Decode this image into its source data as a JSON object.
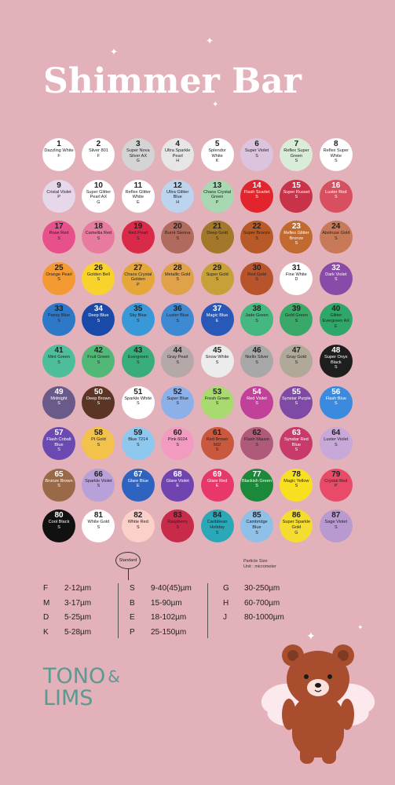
{
  "title": "Shimmer Bar",
  "colors": {
    "background": "#e3b1b9",
    "logo": "#5a9a91"
  },
  "swatches": [
    {
      "num": "1",
      "name": "Dazzling White",
      "code": "F",
      "color": "#ffffff",
      "text": "#222"
    },
    {
      "num": "2",
      "name": "Silver 801",
      "code": "F",
      "color": "#ffffff",
      "text": "#222"
    },
    {
      "num": "3",
      "name": "Super Nova Silver AX",
      "code": "G",
      "color": "#d4d4d4",
      "text": "#222"
    },
    {
      "num": "4",
      "name": "Ultra Sparkle Pearl",
      "code": "H",
      "color": "#e6e6e6",
      "text": "#222"
    },
    {
      "num": "5",
      "name": "Splendor White",
      "code": "K",
      "color": "#ffffff",
      "text": "#222"
    },
    {
      "num": "6",
      "name": "Super Violet",
      "code": "S",
      "color": "#dcc4de",
      "text": "#222"
    },
    {
      "num": "7",
      "name": "Reflex Super Green",
      "code": "S",
      "color": "#d8ecd8",
      "text": "#222"
    },
    {
      "num": "8",
      "name": "Reflex Super White",
      "code": "S",
      "color": "#ffffff",
      "text": "#222"
    },
    {
      "num": "9",
      "name": "Cristal Violet",
      "code": "P",
      "color": "#e7d7ea",
      "text": "#222"
    },
    {
      "num": "10",
      "name": "Super Glitter Pearl AX",
      "code": "G",
      "color": "#ffffff",
      "text": "#222"
    },
    {
      "num": "11",
      "name": "Reflex Glitter White",
      "code": "E",
      "color": "#ffffff",
      "text": "#222"
    },
    {
      "num": "12",
      "name": "Ultra Glitter Blue",
      "code": "H",
      "color": "#bcd4ee",
      "text": "#222"
    },
    {
      "num": "13",
      "name": "Chaos Crystal Green",
      "code": "P",
      "color": "#a8d8b2",
      "text": "#222"
    },
    {
      "num": "14",
      "name": "Flash Scarlet",
      "code": "S",
      "color": "#e2242c",
      "text": "#ffffff"
    },
    {
      "num": "15",
      "name": "Super Russet",
      "code": "S",
      "color": "#c9334a",
      "text": "#ffffff"
    },
    {
      "num": "16",
      "name": "Luster Red",
      "code": "S",
      "color": "#d8505f",
      "text": "#ffffff"
    },
    {
      "num": "17",
      "name": "Rose Red",
      "code": "S",
      "color": "#e8508c",
      "text": "#222"
    },
    {
      "num": "18",
      "name": "Camellia Red",
      "code": "S",
      "color": "#e87aa0",
      "text": "#222"
    },
    {
      "num": "19",
      "name": "Red Pearl",
      "code": "S",
      "color": "#d92a4a",
      "text": "#222"
    },
    {
      "num": "20",
      "name": "Burnt Sienna",
      "code": "S",
      "color": "#b06a5e",
      "text": "#222"
    },
    {
      "num": "21",
      "name": "Deep Gold",
      "code": "S",
      "color": "#a3782a",
      "text": "#222"
    },
    {
      "num": "22",
      "name": "Super Bronze",
      "code": "S",
      "color": "#b85a28",
      "text": "#222"
    },
    {
      "num": "23",
      "name": "Reflex Glitter Bronze",
      "code": "S",
      "color": "#c06a30",
      "text": "#ffffff"
    },
    {
      "num": "24",
      "name": "Abstruse Gold",
      "code": "S",
      "color": "#c87a58",
      "text": "#222"
    },
    {
      "num": "25",
      "name": "Orange Pearl",
      "code": "S",
      "color": "#f39a32",
      "text": "#222"
    },
    {
      "num": "26",
      "name": "Golden Bell",
      "code": "S",
      "color": "#f8d32c",
      "text": "#222"
    },
    {
      "num": "27",
      "name": "Chaos Crystal Golden",
      "code": "P",
      "color": "#e5a838",
      "text": "#222"
    },
    {
      "num": "28",
      "name": "Metallic Gold",
      "code": "S",
      "color": "#dfa24a",
      "text": "#222"
    },
    {
      "num": "29",
      "name": "Super Gold",
      "code": "S",
      "color": "#c8a038",
      "text": "#222"
    },
    {
      "num": "30",
      "name": "Red Gold",
      "code": "S",
      "color": "#b8542c",
      "text": "#222"
    },
    {
      "num": "31",
      "name": "Fine White",
      "code": "D",
      "color": "#ffffff",
      "text": "#222"
    },
    {
      "num": "32",
      "name": "Dark Violet",
      "code": "S",
      "color": "#8a4aa8",
      "text": "#ffffff"
    },
    {
      "num": "33",
      "name": "Pansy Blue",
      "code": "S",
      "color": "#2e78c8",
      "text": "#222"
    },
    {
      "num": "34",
      "name": "Deep Blue",
      "code": "S",
      "color": "#1a4aa8",
      "text": "#ffffff"
    },
    {
      "num": "35",
      "name": "Sky Blue",
      "code": "S",
      "color": "#3898d8",
      "text": "#222"
    },
    {
      "num": "36",
      "name": "Luster Blue",
      "code": "S",
      "color": "#3e8ad2",
      "text": "#222"
    },
    {
      "num": "37",
      "name": "Magic Blue",
      "code": "E",
      "color": "#2858b8",
      "text": "#ffffff"
    },
    {
      "num": "38",
      "name": "Jade Green",
      "code": "S",
      "color": "#44b880",
      "text": "#222"
    },
    {
      "num": "39",
      "name": "Gold Green",
      "code": "S",
      "color": "#3aa868",
      "text": "#222"
    },
    {
      "num": "40",
      "name": "Glitter Evergreen AX",
      "code": "E",
      "color": "#2ea86a",
      "text": "#222"
    },
    {
      "num": "41",
      "name": "Mint Green",
      "code": "S",
      "color": "#4cbf9a",
      "text": "#222"
    },
    {
      "num": "42",
      "name": "Fruit Green",
      "code": "S",
      "color": "#52b878",
      "text": "#222"
    },
    {
      "num": "43",
      "name": "Evergreen",
      "code": "S",
      "color": "#3aae7a",
      "text": "#222"
    },
    {
      "num": "44",
      "name": "Gray Pearl",
      "code": "S",
      "color": "#b4a8a8",
      "text": "#222"
    },
    {
      "num": "45",
      "name": "Snow White",
      "code": "S",
      "color": "#ececec",
      "text": "#222"
    },
    {
      "num": "46",
      "name": "Niello Silver",
      "code": "S",
      "color": "#a8a8a8",
      "text": "#222"
    },
    {
      "num": "47",
      "name": "Gray Gold",
      "code": "S",
      "color": "#b0a898",
      "text": "#222"
    },
    {
      "num": "48",
      "name": "Super Onyx Black",
      "code": "S",
      "color": "#1e1e1e",
      "text": "#ffffff"
    },
    {
      "num": "49",
      "name": "Midnight",
      "code": "S",
      "color": "#6a5a8a",
      "text": "#ffffff"
    },
    {
      "num": "50",
      "name": "Deep Brown",
      "code": "S",
      "color": "#5a3424",
      "text": "#ffffff"
    },
    {
      "num": "51",
      "name": "Sparkle White",
      "code": "S",
      "color": "#ffffff",
      "text": "#222"
    },
    {
      "num": "52",
      "name": "Super Blue",
      "code": "S",
      "color": "#8cb0e8",
      "text": "#222"
    },
    {
      "num": "53",
      "name": "Fresh Green",
      "code": "S",
      "color": "#a8da70",
      "text": "#222"
    },
    {
      "num": "54",
      "name": "Red Violet",
      "code": "S",
      "color": "#c0409a",
      "text": "#ffffff"
    },
    {
      "num": "55",
      "name": "Synstar Purple",
      "code": "S",
      "color": "#7e4aa6",
      "text": "#ffffff"
    },
    {
      "num": "56",
      "name": "Flash Blue",
      "code": "S",
      "color": "#3a8ae0",
      "text": "#ffffff"
    },
    {
      "num": "57",
      "name": "Flash Cobalt Blue",
      "code": "S",
      "color": "#6a4ab0",
      "text": "#ffffff"
    },
    {
      "num": "58",
      "name": "Pt Gold",
      "code": "S",
      "color": "#f3c24a",
      "text": "#222"
    },
    {
      "num": "59",
      "name": "Blue 7214",
      "code": "S",
      "color": "#8ec8ee",
      "text": "#222"
    },
    {
      "num": "60",
      "name": "Pink 6024",
      "code": "S",
      "color": "#f29ac0",
      "text": "#222"
    },
    {
      "num": "61",
      "name": "Red Brown 502",
      "code": "S",
      "color": "#c8583e",
      "text": "#222"
    },
    {
      "num": "62",
      "name": "Flash Mauve",
      "code": "S",
      "color": "#b05a7a",
      "text": "#222"
    },
    {
      "num": "63",
      "name": "Synstar Red Blue",
      "code": "S",
      "color": "#c83a6a",
      "text": "#ffffff"
    },
    {
      "num": "64",
      "name": "Luster Violet",
      "code": "S",
      "color": "#c8a8d8",
      "text": "#222"
    },
    {
      "num": "65",
      "name": "Bronze Brown",
      "code": "S",
      "color": "#9a6a48",
      "text": "#ffffff"
    },
    {
      "num": "66",
      "name": "Sparkle Violet",
      "code": "S",
      "color": "#b8a0d8",
      "text": "#222"
    },
    {
      "num": "67",
      "name": "Glare Blue",
      "code": "E",
      "color": "#2e64c0",
      "text": "#ffffff"
    },
    {
      "num": "68",
      "name": "Glare Violet",
      "code": "E",
      "color": "#7044b0",
      "text": "#ffffff"
    },
    {
      "num": "69",
      "name": "Glare Red",
      "code": "E",
      "color": "#e8386a",
      "text": "#ffffff"
    },
    {
      "num": "77",
      "name": "Blackish Green",
      "code": "S",
      "color": "#1a8a3a",
      "text": "#ffffff"
    },
    {
      "num": "78",
      "name": "Magic Yellow",
      "code": "S",
      "color": "#f8e020",
      "text": "#222"
    },
    {
      "num": "79",
      "name": "Crystal Red",
      "code": "P",
      "color": "#e84a68",
      "text": "#222"
    },
    {
      "num": "80",
      "name": "Cool Black",
      "code": "S",
      "color": "#111111",
      "text": "#ffffff"
    },
    {
      "num": "81",
      "name": "White Gold",
      "code": "S",
      "color": "#ffffff",
      "text": "#222"
    },
    {
      "num": "82",
      "name": "White Red",
      "code": "S",
      "color": "#fad0c8",
      "text": "#222"
    },
    {
      "num": "83",
      "name": "Raspberry",
      "code": "S",
      "color": "#c82a4a",
      "text": "#222"
    },
    {
      "num": "84",
      "name": "Caribbean Holiday",
      "code": "S",
      "color": "#2aa8b8",
      "text": "#222"
    },
    {
      "num": "85",
      "name": "Cambridge Blue",
      "code": "S",
      "color": "#8ec0e8",
      "text": "#222"
    },
    {
      "num": "86",
      "name": "Super Sparkle Gold",
      "code": "G",
      "color": "#f4dc30",
      "text": "#222"
    },
    {
      "num": "87",
      "name": "Sage Violet",
      "code": "S",
      "color": "#b89ad0",
      "text": "#222"
    }
  ],
  "legend": {
    "standard_label": "Standard",
    "particle_title": "Particle Size",
    "particle_unit": "Unit : micrometer",
    "col1": [
      {
        "k": "F",
        "v": "2-12µm"
      },
      {
        "k": "M",
        "v": "3-17µm"
      },
      {
        "k": "D",
        "v": "5-25µm"
      },
      {
        "k": "K",
        "v": "5-28µm"
      }
    ],
    "col2": [
      {
        "k": "S",
        "v": "9-40(45)µm"
      },
      {
        "k": "B",
        "v": "15-90µm"
      },
      {
        "k": "E",
        "v": "18-102µm"
      },
      {
        "k": "P",
        "v": "25-150µm"
      }
    ],
    "col3": [
      {
        "k": "G",
        "v": "30-250µm"
      },
      {
        "k": "H",
        "v": "60-700µm"
      },
      {
        "k": "J",
        "v": "80-1000µm"
      }
    ]
  },
  "logo": {
    "line1": "TONO",
    "amp": "&",
    "line2": "LIMS"
  },
  "icons": {
    "sparkle": "sparkle-icon",
    "bear": "winged-bear-icon"
  }
}
